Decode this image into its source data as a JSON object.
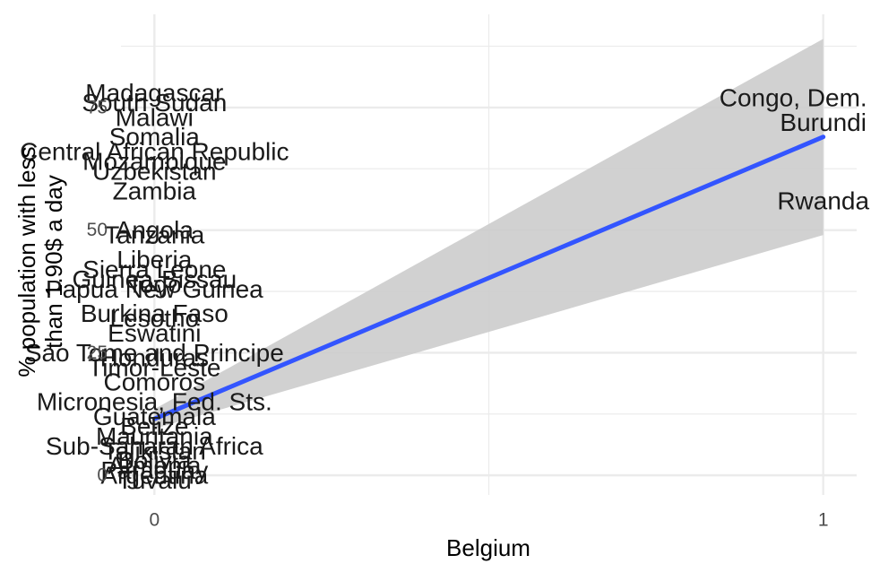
{
  "chart_data": {
    "type": "scatter",
    "xlabel": "Belgium",
    "ylabel_line1": "% population with less",
    "ylabel_line2": "than 1.90$ a day",
    "xlim": [
      -0.05,
      1.05
    ],
    "ylim": [
      -4,
      94
    ],
    "x_ticks": [
      0,
      1
    ],
    "y_ticks": [
      0,
      25,
      50,
      75
    ],
    "grid": true,
    "points": [
      {
        "label": "Congo, Dem. Rep.",
        "x": 1,
        "y": 77
      },
      {
        "label": "Burundi",
        "x": 1,
        "y": 72
      },
      {
        "label": "Rwanda",
        "x": 1,
        "y": 56
      },
      {
        "label": "Madagascar",
        "x": 0,
        "y": 78
      },
      {
        "label": "South Sudan",
        "x": 0,
        "y": 76
      },
      {
        "label": "Malawi",
        "x": 0,
        "y": 73
      },
      {
        "label": "Somalia",
        "x": 0,
        "y": 69
      },
      {
        "label": "Central African Republic",
        "x": 0,
        "y": 66
      },
      {
        "label": "Mozambique",
        "x": 0,
        "y": 64
      },
      {
        "label": "Uzbekistan",
        "x": 0,
        "y": 62
      },
      {
        "label": "Zambia",
        "x": 0,
        "y": 58
      },
      {
        "label": "Angola",
        "x": 0,
        "y": 50
      },
      {
        "label": "Tanzania",
        "x": 0,
        "y": 49
      },
      {
        "label": "Liberia",
        "x": 0,
        "y": 44
      },
      {
        "label": "Sierra Leone",
        "x": 0,
        "y": 42
      },
      {
        "label": "Guinea-Bissau",
        "x": 0,
        "y": 40
      },
      {
        "label": "Togo",
        "x": 0,
        "y": 39
      },
      {
        "label": "Papua New Guinea",
        "x": 0,
        "y": 38
      },
      {
        "label": "Burkina Faso",
        "x": 0,
        "y": 33
      },
      {
        "label": "Lesotho",
        "x": 0,
        "y": 32
      },
      {
        "label": "Eswatini",
        "x": 0,
        "y": 29
      },
      {
        "label": "Sao Tome and Principe",
        "x": 0,
        "y": 25
      },
      {
        "label": "Honduras",
        "x": 0,
        "y": 24
      },
      {
        "label": "Timor-Leste",
        "x": 0,
        "y": 22
      },
      {
        "label": "Comoros",
        "x": 0,
        "y": 19
      },
      {
        "label": "Micronesia, Fed. Sts.",
        "x": 0,
        "y": 15
      },
      {
        "label": "Guatemala",
        "x": 0,
        "y": 12
      },
      {
        "label": "Belize",
        "x": 0,
        "y": 10
      },
      {
        "label": "Mauritania",
        "x": 0,
        "y": 8
      },
      {
        "label": "Sub-Saharan Africa",
        "x": 0,
        "y": 6
      },
      {
        "label": "Tajikistan",
        "x": 0,
        "y": 5
      },
      {
        "label": "Bolivia",
        "x": 0,
        "y": 3
      },
      {
        "label": "Armenia",
        "x": 0,
        "y": 2
      },
      {
        "label": "Paraguay",
        "x": 0,
        "y": 1
      },
      {
        "label": "Argentina",
        "x": 0,
        "y": 0
      },
      {
        "label": "Tuvalu",
        "x": 0,
        "y": -1
      }
    ],
    "trend": {
      "x0": 0,
      "y0": 11.5,
      "x1": 1,
      "y1": 69,
      "ci_lo0": 9.5,
      "ci_hi0": 13.5,
      "ci_lo1": 49,
      "ci_hi1": 89
    },
    "colors": {
      "trend_line": "#3355ff",
      "ribbon": "#cccccc",
      "grid": "#ebebeb",
      "label": "#1a1a1a",
      "tick": "#4d4d4d"
    }
  }
}
